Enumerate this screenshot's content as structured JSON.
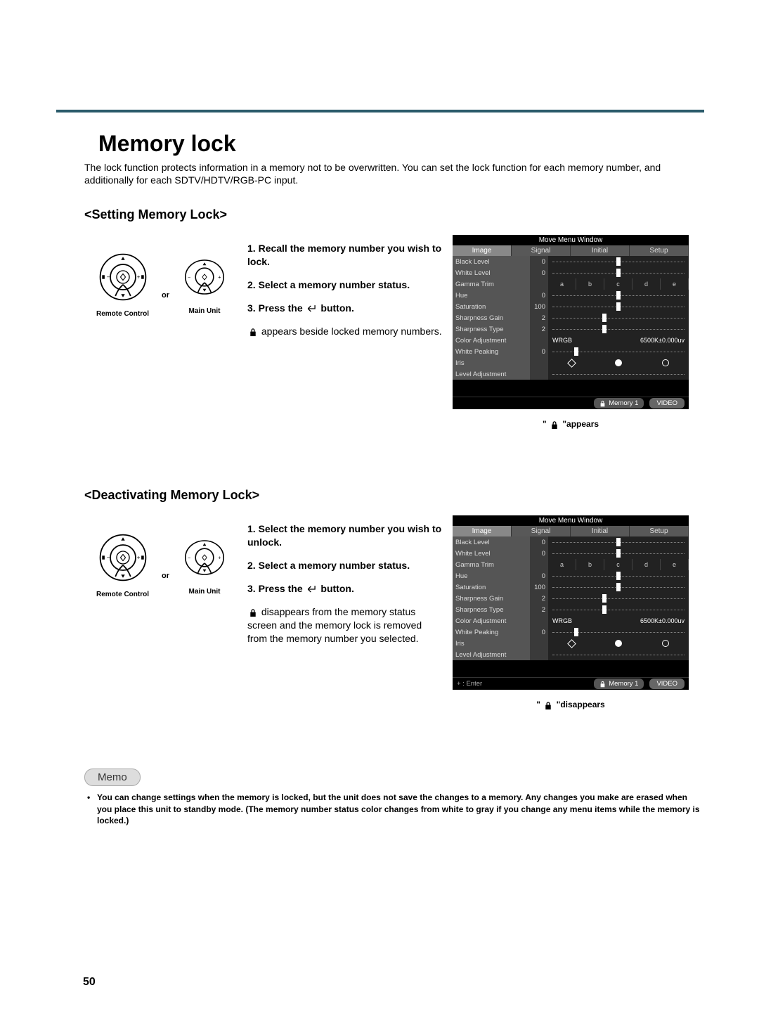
{
  "page": {
    "title": "Memory lock",
    "intro": "The lock function protects information in a memory not to be overwritten. You can set the lock function for each memory number, and additionally for each SDTV/HDTV/RGB-PC input.",
    "pageNumber": "50"
  },
  "controls": {
    "remote": "Remote Control",
    "main": "Main Unit",
    "or": "or"
  },
  "section1": {
    "title": "<Setting Memory Lock>",
    "step1": "Recall the memory number you wish to lock.",
    "step2": "Select a memory number status.",
    "step3_pre": "Press the ",
    "step3_post": " button.",
    "note_pre": "",
    "note_post": " appears beside locked memory numbers.",
    "caption_pre": "\" ",
    "caption_post": " \"appears"
  },
  "section2": {
    "title": "<Deactivating Memory Lock>",
    "step1": "Select the memory number you wish to unlock.",
    "step2": "Select a memory number status.",
    "step3_pre": "Press the ",
    "step3_post": " button.",
    "note": " disappears from the memory status screen and the memory lock is removed from the memory number you selected.",
    "caption_pre": "\" ",
    "caption_post": " \"disappears"
  },
  "screen": {
    "title": "Move Menu Window",
    "tabs": [
      "Image",
      "Signal",
      "Initial",
      "Setup"
    ],
    "activeTab": 0,
    "rows": [
      {
        "label": "Black Level",
        "val": "0",
        "type": "slider",
        "thumb": 50
      },
      {
        "label": "White Level",
        "val": "0",
        "type": "slider",
        "thumb": 50
      },
      {
        "label": "Gamma Trim",
        "val": "",
        "type": "gamma",
        "cells": [
          "a",
          "b",
          "c",
          "d",
          "e"
        ]
      },
      {
        "label": "Hue",
        "val": "0",
        "type": "slider",
        "thumb": 50
      },
      {
        "label": "Saturation",
        "val": "100",
        "type": "slider",
        "thumb": 50
      },
      {
        "label": "Sharpness Gain",
        "val": "2",
        "type": "slider",
        "thumb": 40
      },
      {
        "label": "Sharpness Type",
        "val": "2",
        "type": "slider",
        "thumb": 40
      },
      {
        "label": "Color Adjustment",
        "val": "",
        "type": "color",
        "left": "WRGB",
        "right": "6500K±0.000uv"
      },
      {
        "label": "White Peaking",
        "val": "0",
        "type": "slider",
        "thumb": 20
      },
      {
        "label": "Iris",
        "val": "",
        "type": "iris"
      },
      {
        "label": "Level Adjustment",
        "val": "",
        "type": "blank"
      }
    ],
    "footer_enter": "Enter",
    "footer_mem": "Memory 1",
    "footer_src": "VIDEO"
  },
  "memo": {
    "label": "Memo",
    "item1": "You can change settings when the memory is locked, but the unit does not save the changes to a memory. Any changes you make are erased when you place this unit to standby mode. (The memory number status color changes from white to gray if you change any menu items while the memory is locked.)"
  },
  "colors": {
    "rule": "#2a5a6a"
  }
}
